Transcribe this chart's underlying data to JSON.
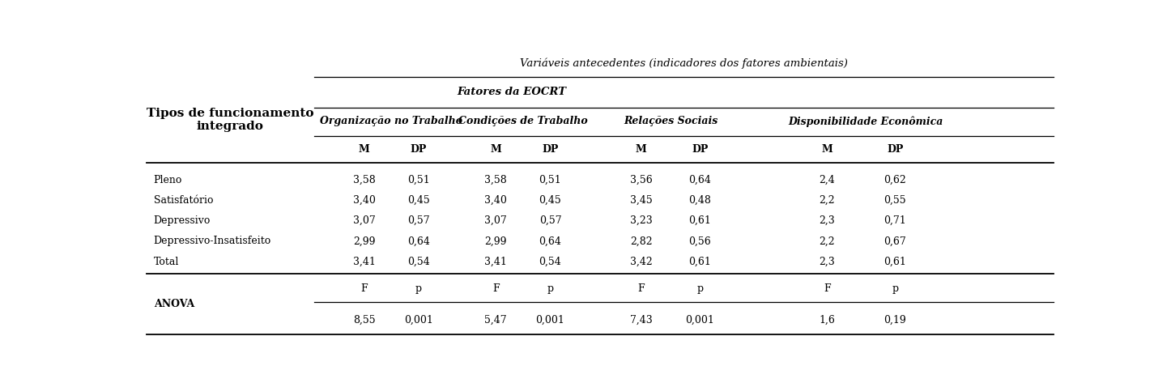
{
  "title_row": "Variáveis antecedentes (indicadores dos fatores ambientais)",
  "header_left": "Tipos de funcionamento\nintegrado",
  "subheader_eocrt": "Fatores da EOCRT",
  "subheader_disp": "Disponibilidade Econômica",
  "subgroup_names": [
    "Organização no Trabalho",
    "Condições de Trabalho",
    "Relações Sociais"
  ],
  "row_labels": [
    "Pleno",
    "Satisfatório",
    "Depressivo",
    "Depressivo-Insatisfeito",
    "Total"
  ],
  "data": [
    [
      "3,58",
      "0,51",
      "3,58",
      "0,51",
      "3,56",
      "0,64",
      "2,4",
      "0,62"
    ],
    [
      "3,40",
      "0,45",
      "3,40",
      "0,45",
      "3,45",
      "0,48",
      "2,2",
      "0,55"
    ],
    [
      "3,07",
      "0,57",
      "3,07",
      "0,57",
      "3,23",
      "0,61",
      "2,3",
      "0,71"
    ],
    [
      "2,99",
      "0,64",
      "2,99",
      "0,64",
      "2,82",
      "0,56",
      "2,2",
      "0,67"
    ],
    [
      "3,41",
      "0,54",
      "3,41",
      "0,54",
      "3,42",
      "0,61",
      "2,3",
      "0,61"
    ]
  ],
  "anova_label": "ANOVA",
  "anova_subheaders": [
    "F",
    "p",
    "F",
    "p",
    "F",
    "p",
    "F",
    "p"
  ],
  "anova_values": [
    "8,55",
    "0,001",
    "5,47",
    "0,001",
    "7,43",
    "0,001",
    "1,6",
    "0,19"
  ],
  "bg_color": "#ffffff",
  "text_color": "#000000"
}
